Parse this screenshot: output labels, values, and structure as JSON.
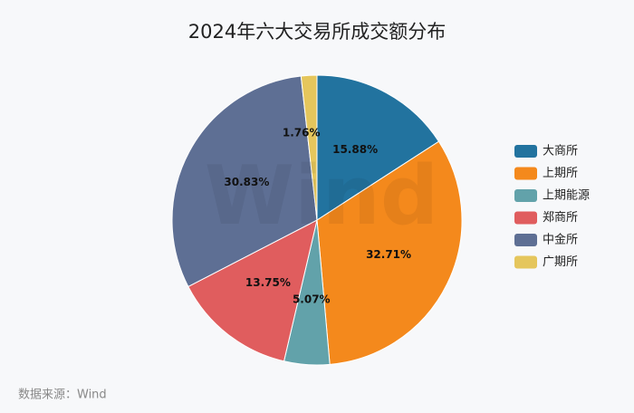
{
  "chart_data": {
    "type": "pie",
    "title": "2024年六大交易所成交额分布",
    "categories": [
      "大商所",
      "上期所",
      "上期能源",
      "郑商所",
      "中金所",
      "广期所"
    ],
    "values": [
      15.88,
      32.71,
      5.07,
      13.75,
      30.83,
      1.76
    ],
    "value_labels": [
      "15.88%",
      "32.71%",
      "5.07%",
      "13.75%",
      "30.83%",
      "1.76%"
    ],
    "colors": [
      "#22739f",
      "#f4891c",
      "#62a2aa",
      "#e05d5e",
      "#5e6f94",
      "#e5c65c"
    ],
    "legend": "right",
    "watermark": "Wind",
    "source": "数据来源：Wind"
  }
}
